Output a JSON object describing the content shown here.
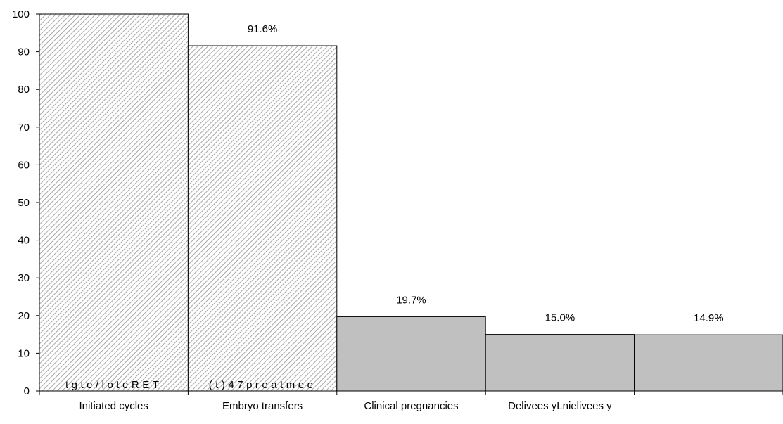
{
  "chart_data": {
    "type": "bar",
    "categories": [
      "Initiated cycles",
      "Embryo transfers",
      "Clinical pregnancies",
      "Delivees yLnielivees y",
      ""
    ],
    "values": [
      100,
      91.6,
      19.7,
      15.0,
      14.9
    ],
    "data_labels": [
      "",
      "91.6%",
      "19.7%",
      "15.0%",
      "14.9%"
    ],
    "inner_labels": [
      "tgte/loteRET",
      "(t)47preatmee",
      "",
      "",
      ""
    ],
    "fills": [
      "hatched",
      "hatched",
      "solid",
      "solid",
      "solid"
    ],
    "ylim": [
      0,
      100
    ],
    "yticks": [
      "0",
      "10",
      "20",
      "30",
      "40",
      "50",
      "60",
      "70",
      "80",
      "90",
      "100"
    ],
    "grid": false,
    "legend": "none",
    "colors": {
      "solid_fill": "#c0c0c0",
      "hatch_line": "#a8a8a8",
      "outline": "#000000"
    }
  }
}
